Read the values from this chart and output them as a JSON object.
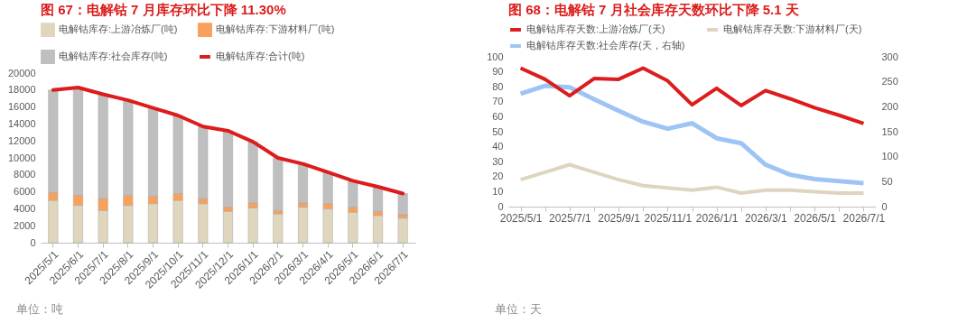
{
  "chart_data": [
    {
      "type": "bar",
      "title": "图 67：电解钴 7 月库存环比下降 11.30%",
      "stacked": true,
      "legend": "top",
      "grid": false,
      "categories": [
        "2025/5/1",
        "2025/6/1",
        "2025/7/1",
        "2025/8/1",
        "2025/9/1",
        "2025/10/1",
        "2025/11/1",
        "2025/12/1",
        "2026/1/1",
        "2026/2/1",
        "2026/3/1",
        "2026/4/1",
        "2026/5/1",
        "2026/6/1",
        "2026/7/1"
      ],
      "ylim": [
        0,
        20000
      ],
      "yticks": [
        0,
        2000,
        4000,
        6000,
        8000,
        10000,
        12000,
        14000,
        16000,
        18000,
        20000
      ],
      "series": [
        {
          "name": "电解钴库存:上游冶炼厂(吨)",
          "color": "#e0d6bd",
          "values": [
            5000,
            4400,
            3800,
            4400,
            4600,
            5000,
            4600,
            3700,
            4100,
            3400,
            4200,
            4000,
            3600,
            3200,
            2900
          ]
        },
        {
          "name": "电解钴库存:下游材料厂(吨)",
          "color": "#f9a05a",
          "values": [
            900,
            1200,
            1400,
            1200,
            900,
            800,
            600,
            500,
            600,
            400,
            500,
            600,
            600,
            500,
            400
          ]
        },
        {
          "name": "电解钴库存:社会库存(吨)",
          "color": "#bfbfbf",
          "values": [
            12100,
            12700,
            12300,
            11200,
            10400,
            9200,
            8500,
            9000,
            7200,
            6200,
            4600,
            3700,
            3100,
            2900,
            2500
          ]
        },
        {
          "name": "电解钴库存:合计(吨)",
          "type": "line",
          "color": "#dd1c1c",
          "values": [
            18000,
            18300,
            17500,
            16800,
            15900,
            15000,
            13700,
            13200,
            11900,
            10000,
            9300,
            8300,
            7300,
            6600,
            5800
          ]
        }
      ],
      "annotations": [
        "单位：吨"
      ]
    },
    {
      "type": "line",
      "title": "图 68：电解钴 7 月社会库存天数环比下降 5.1 天",
      "legend": "top",
      "grid": false,
      "categories": [
        "2025/5/1",
        null,
        "2025/7/1",
        null,
        "2025/9/1",
        null,
        "2025/11/1",
        null,
        "2026/1/1",
        null,
        "2026/3/1",
        null,
        "2026/5/1",
        null,
        "2026/7/1"
      ],
      "ylim": [
        0,
        100
      ],
      "yticks": [
        0,
        10,
        20,
        30,
        40,
        50,
        60,
        70,
        80,
        90,
        100
      ],
      "y2lim": [
        0,
        300
      ],
      "y2ticks": [
        0,
        50,
        100,
        150,
        200,
        250,
        300
      ],
      "series": [
        {
          "name": "电解钴库存天数:上游冶炼厂(天)",
          "color": "#dd1c1c",
          "values": [
            92.5,
            85,
            74,
            85.5,
            85,
            92.5,
            84,
            68,
            79,
            67.5,
            77.5,
            72,
            66,
            61,
            55.5
          ]
        },
        {
          "name": "电解钴库存天数:下游材料厂(天)",
          "color": "#ddd5c0",
          "values": [
            18,
            23,
            28,
            23,
            18,
            14,
            12.5,
            11,
            13,
            9,
            11,
            11,
            10,
            9,
            9
          ]
        },
        {
          "name": "电解钴库存天数:社会库存(天，右轴)",
          "color": "#9ec4f5",
          "axis": "y2",
          "values": [
            226,
            242,
            239,
            215,
            192,
            170,
            156,
            167,
            137,
            127,
            84,
            64,
            55,
            51,
            47
          ]
        }
      ],
      "annotations": [
        "单位：天"
      ]
    }
  ]
}
